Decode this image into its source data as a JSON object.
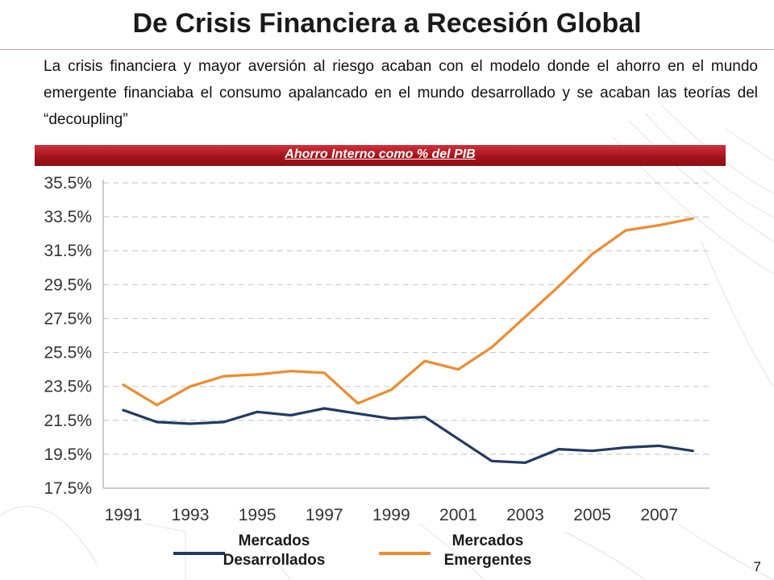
{
  "slide": {
    "title": "De Crisis Financiera a Recesión Global",
    "body": "La crisis financiera y mayor aversión al riesgo acaban con el modelo donde el ahorro en el mundo emergente financiaba el consumo apalancado en el mundo desarrollado y se acaban las teorías del “decoupling”",
    "banner": "Ahorro Interno como % del PIB",
    "page_number": "7",
    "colors": {
      "banner": "#b01e26",
      "developed": "#1f3b63",
      "emerging": "#f18a2e"
    }
  },
  "legend": [
    {
      "label": "Mercados Desarrollados",
      "color": "#1f3b63"
    },
    {
      "label": "Mercados Emergentes",
      "color": "#f18a2e"
    }
  ],
  "chart_data": {
    "type": "line",
    "x": [
      1991,
      1992,
      1993,
      1994,
      1995,
      1996,
      1997,
      1998,
      1999,
      2000,
      2001,
      2002,
      2003,
      2004,
      2005,
      2006,
      2007,
      2008
    ],
    "x_tick_labels": [
      "1991",
      "1993",
      "1995",
      "1997",
      "1999",
      "2001",
      "2003",
      "2005",
      "2007"
    ],
    "y_tick_labels": [
      "35.5%",
      "33.5%",
      "31.5%",
      "29.5%",
      "27.5%",
      "25.5%",
      "23.5%",
      "21.5%",
      "19.5%",
      "17.5%"
    ],
    "ylim": [
      17.5,
      35.5
    ],
    "grid": "horizontal dashed",
    "series": [
      {
        "name": "Mercados Desarrollados",
        "color": "#1f3b63",
        "values": [
          22.1,
          21.4,
          21.3,
          21.4,
          22.0,
          21.8,
          22.2,
          21.9,
          21.6,
          21.7,
          20.4,
          19.1,
          19.0,
          19.8,
          19.7,
          19.9,
          20.0,
          19.7
        ]
      },
      {
        "name": "Mercados Emergentes",
        "color": "#f18a2e",
        "values": [
          23.6,
          22.4,
          23.5,
          24.1,
          24.2,
          24.4,
          24.3,
          22.5,
          23.3,
          25.0,
          24.5,
          25.8,
          27.6,
          29.4,
          31.3,
          32.7,
          33.0,
          33.4
        ]
      }
    ]
  }
}
